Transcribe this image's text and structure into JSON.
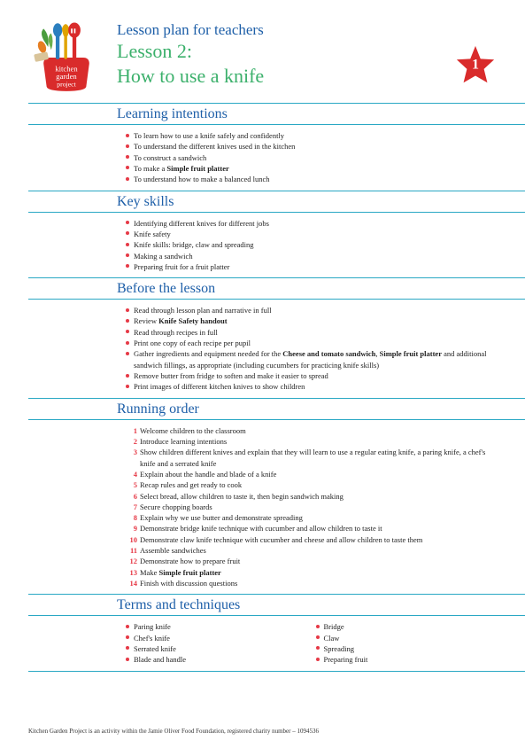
{
  "colors": {
    "heading_blue": "#1e5fa8",
    "heading_green": "#3bb06b",
    "rule": "#2aa8c4",
    "bullet": "#e63946",
    "star_fill": "#d92b2b",
    "text": "#222222"
  },
  "star_number": "1",
  "title": {
    "line1": "Lesson plan for teachers",
    "line2": "Lesson 2:",
    "line3": "How to use a knife"
  },
  "sections": {
    "learning_intentions": {
      "heading": "Learning intentions",
      "items": [
        "To learn how to use a knife safely and confidently",
        "To understand the different knives used in the kitchen",
        "To construct a sandwich",
        "To make a <b>Simple fruit platter</b>",
        "To understand how to make a balanced lunch"
      ]
    },
    "key_skills": {
      "heading": "Key skills",
      "items": [
        "Identifying different knives for different jobs",
        "Knife safety",
        "Knife skills: bridge, claw and spreading",
        "Making a sandwich",
        "Preparing fruit for a fruit platter"
      ]
    },
    "before_lesson": {
      "heading": "Before the lesson",
      "items": [
        "Read through lesson plan and narrative in full",
        "Review <b>Knife Safety handout</b>",
        "Read through recipes in full",
        "Print one copy of each recipe per pupil",
        "Gather ingredients and equipment needed for the <b>Cheese and tomato sandwich</b>, <b>Simple fruit platter</b> and additional sandwich fillings, as appropriate (including cucumbers for practicing knife skills)",
        "Remove butter from fridge to soften and make it easier to spread",
        "Print images of different kitchen knives to show children"
      ]
    },
    "running_order": {
      "heading": "Running order",
      "items": [
        "Welcome children to the classroom",
        "Introduce learning intentions",
        "Show children different knives and explain that they will learn to use a regular eating knife, a paring knife, a chef's knife and a serrated knife",
        "Explain about the handle and blade of a knife",
        "Recap rules and get ready to cook",
        "Select bread, allow children to taste it, then begin sandwich making",
        "Secure chopping boards",
        "Explain why we use butter and demonstrate spreading",
        "Demonstrate bridge knife technique with cucumber and allow children to taste it",
        "Demonstrate claw knife technique with cucumber and cheese and allow children to taste them",
        "Assemble sandwiches",
        "Demonstrate how to prepare fruit",
        "Make <b>Simple fruit platter</b>",
        "Finish with discussion questions"
      ]
    },
    "terms": {
      "heading": "Terms and techniques",
      "left": [
        "Paring knife",
        "Chef's knife",
        "Serrated knife",
        "Blade and handle"
      ],
      "right": [
        "Bridge",
        "Claw",
        "Spreading",
        "Preparing fruit"
      ]
    }
  },
  "footer": "Kitchen Garden Project is an activity within the Jamie Oliver Food Foundation, registered charity number – 1094536"
}
